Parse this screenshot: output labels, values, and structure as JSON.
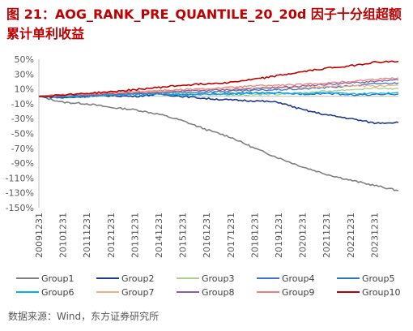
{
  "title": "图 21：AOG_RANK_PRE_QUANTILE_20_20d 因子十分组超额累计单利收益",
  "source": "数据来源：Wind，东方证券研究所",
  "chart_data": {
    "type": "line",
    "title": "",
    "xlabel": "",
    "ylabel": "",
    "ylim": [
      -150,
      50
    ],
    "y_ticks": [
      50,
      30,
      10,
      -10,
      -30,
      -50,
      -70,
      -90,
      -110,
      -130,
      -150
    ],
    "y_tick_labels": [
      "50%",
      "30%",
      "10%",
      "-10%",
      "-30%",
      "-50%",
      "-70%",
      "-90%",
      "-110%",
      "-130%",
      "-150%"
    ],
    "x": [
      "20091231",
      "20101231",
      "20111231",
      "20121231",
      "20131231",
      "20141231",
      "20151231",
      "20161231",
      "20171231",
      "20181231",
      "20191231",
      "20201231",
      "20211231",
      "20221231",
      "20231231",
      "20240930"
    ],
    "x_tick_labels": [
      "20091231",
      "20101231",
      "20111231",
      "20121231",
      "20131231",
      "20141231",
      "20151231",
      "20161231",
      "20171231",
      "20181231",
      "20191231",
      "20201231",
      "20211231",
      "20221231",
      "20231231"
    ],
    "grid": false,
    "legend_position": "bottom",
    "series": [
      {
        "name": "Group1",
        "color": "#7f7f7f",
        "values": [
          0,
          -8,
          -10,
          -15,
          -18,
          -24,
          -33,
          -45,
          -55,
          -70,
          -83,
          -95,
          -105,
          -113,
          -120,
          -127
        ]
      },
      {
        "name": "Group2",
        "color": "#1f3a8a",
        "values": [
          0,
          -2,
          0,
          1,
          0,
          3,
          0,
          -3,
          -5,
          -6,
          -8,
          -18,
          -25,
          -30,
          -36,
          -35
        ]
      },
      {
        "name": "Group3",
        "color": "#a9d18e",
        "values": [
          0,
          1,
          2,
          3,
          4,
          5,
          4,
          3,
          2,
          2,
          3,
          5,
          7,
          9,
          11,
          10
        ]
      },
      {
        "name": "Group4",
        "color": "#4472c4",
        "values": [
          0,
          1,
          2,
          3,
          4,
          6,
          5,
          6,
          7,
          8,
          9,
          10,
          12,
          14,
          17,
          18
        ]
      },
      {
        "name": "Group5",
        "color": "#2e75b6",
        "values": [
          0,
          -1,
          0,
          2,
          3,
          4,
          2,
          3,
          4,
          5,
          4,
          3,
          4,
          2,
          2,
          3
        ]
      },
      {
        "name": "Group6",
        "color": "#00b0f0",
        "values": [
          0,
          0,
          1,
          2,
          2,
          3,
          2,
          3,
          3,
          4,
          5,
          4,
          5,
          3,
          4,
          5
        ]
      },
      {
        "name": "Group7",
        "color": "#f4b183",
        "values": [
          0,
          2,
          3,
          4,
          5,
          6,
          8,
          9,
          10,
          11,
          12,
          12,
          13,
          14,
          14,
          15
        ]
      },
      {
        "name": "Group8",
        "color": "#8064a2",
        "values": [
          0,
          1,
          2,
          3,
          4,
          5,
          7,
          8,
          9,
          10,
          12,
          14,
          16,
          18,
          20,
          22
        ]
      },
      {
        "name": "Group9",
        "color": "#f08080",
        "values": [
          0,
          2,
          3,
          5,
          6,
          8,
          9,
          10,
          12,
          14,
          15,
          16,
          18,
          20,
          23,
          25
        ]
      },
      {
        "name": "Group10",
        "color": "#c00000",
        "values": [
          0,
          2,
          4,
          6,
          9,
          12,
          15,
          17,
          19,
          23,
          28,
          33,
          38,
          41,
          46,
          47
        ]
      }
    ]
  }
}
